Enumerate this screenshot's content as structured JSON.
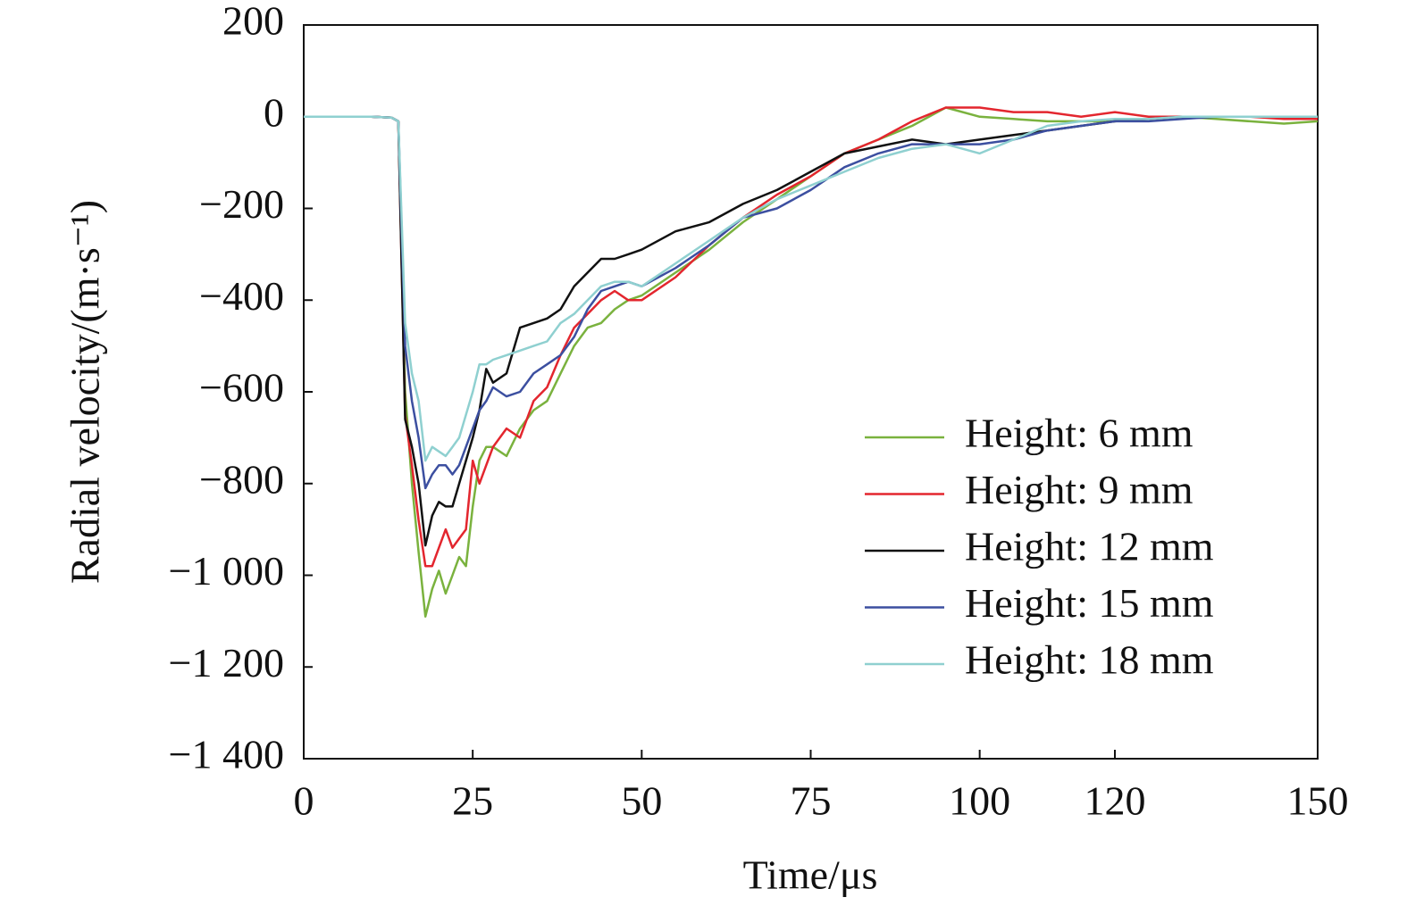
{
  "chart_data": {
    "type": "line",
    "x_label": "Time/μs",
    "y_label": "Radial velocity/(m·s⁻¹)",
    "x": [
      0,
      5,
      10,
      13,
      14,
      15,
      16,
      17,
      18,
      19,
      20,
      21,
      22,
      23,
      24,
      25,
      26,
      27,
      28,
      30,
      32,
      34,
      36,
      38,
      40,
      42,
      44,
      46,
      48,
      50,
      55,
      60,
      65,
      70,
      75,
      80,
      85,
      90,
      95,
      100,
      105,
      110,
      115,
      120,
      125,
      130,
      135,
      140,
      145,
      150
    ],
    "series": [
      {
        "name": "Height: 6 mm",
        "color": "#7ab23e",
        "values": [
          0,
          0,
          0,
          -2,
          -10,
          -600,
          -800,
          -950,
          -1090,
          -1030,
          -990,
          -1040,
          -1000,
          -960,
          -980,
          -850,
          -750,
          -720,
          -720,
          -740,
          -680,
          -640,
          -620,
          -560,
          -500,
          -460,
          -450,
          -420,
          -400,
          -390,
          -340,
          -290,
          -230,
          -180,
          -130,
          -80,
          -50,
          -20,
          20,
          0,
          -5,
          -10,
          -10,
          -10,
          -5,
          0,
          -5,
          -10,
          -15,
          -10
        ]
      },
      {
        "name": "Height: 9 mm",
        "color": "#e3262e",
        "values": [
          0,
          0,
          0,
          -2,
          -10,
          -650,
          -760,
          -880,
          -980,
          -980,
          -940,
          -900,
          -940,
          -920,
          -900,
          -750,
          -800,
          -760,
          -720,
          -680,
          -700,
          -620,
          -590,
          -520,
          -460,
          -430,
          -400,
          -380,
          -400,
          -400,
          -350,
          -280,
          -220,
          -170,
          -130,
          -80,
          -50,
          -10,
          20,
          20,
          10,
          10,
          0,
          10,
          0,
          0,
          0,
          0,
          -5,
          -5
        ]
      },
      {
        "name": "Height: 12 mm",
        "color": "#111111",
        "values": [
          0,
          0,
          0,
          -2,
          -10,
          -660,
          -720,
          -800,
          -935,
          -870,
          -840,
          -850,
          -850,
          -800,
          -750,
          -700,
          -640,
          -550,
          -580,
          -560,
          -460,
          -450,
          -440,
          -420,
          -370,
          -340,
          -310,
          -310,
          -300,
          -290,
          -250,
          -230,
          -190,
          -160,
          -120,
          -80,
          -65,
          -50,
          -60,
          -50,
          -40,
          -30,
          -20,
          -10,
          -5,
          0,
          0,
          0,
          0,
          0
        ]
      },
      {
        "name": "Height: 15 mm",
        "color": "#3c4fa0",
        "values": [
          0,
          0,
          0,
          -2,
          -10,
          -500,
          -620,
          -700,
          -810,
          -780,
          -760,
          -760,
          -780,
          -760,
          -720,
          -680,
          -640,
          -620,
          -590,
          -610,
          -600,
          -560,
          -540,
          -520,
          -480,
          -420,
          -380,
          -370,
          -360,
          -370,
          -330,
          -280,
          -220,
          -200,
          -160,
          -110,
          -80,
          -60,
          -60,
          -60,
          -50,
          -30,
          -20,
          -10,
          -10,
          -5,
          0,
          0,
          0,
          0
        ]
      },
      {
        "name": "Height: 18 mm",
        "color": "#8fd0d0",
        "values": [
          0,
          0,
          0,
          -2,
          -10,
          -450,
          -560,
          -620,
          -750,
          -720,
          -730,
          -740,
          -720,
          -700,
          -650,
          -600,
          -540,
          -540,
          -530,
          -520,
          -510,
          -500,
          -490,
          -450,
          -430,
          -400,
          -370,
          -360,
          -360,
          -370,
          -320,
          -270,
          -220,
          -180,
          -150,
          -120,
          -90,
          -70,
          -60,
          -80,
          -50,
          -20,
          -10,
          -5,
          -5,
          0,
          0,
          0,
          0,
          0
        ]
      }
    ],
    "xlim": [
      0,
      150
    ],
    "xticks": [
      0,
      25,
      50,
      75,
      100,
      120,
      150
    ],
    "ylim": [
      -1400,
      200
    ],
    "yticks": [
      200,
      0,
      {
        "value": -200,
        "label": "−200"
      },
      {
        "value": -400,
        "label": "−400"
      },
      {
        "value": -600,
        "label": "−600"
      },
      {
        "value": -800,
        "label": "−800"
      },
      {
        "value": -1000,
        "label": "−1 000"
      },
      {
        "value": -1200,
        "label": "−1 200"
      },
      {
        "value": -1400,
        "label": "−1 400"
      }
    ],
    "legend": "right"
  }
}
